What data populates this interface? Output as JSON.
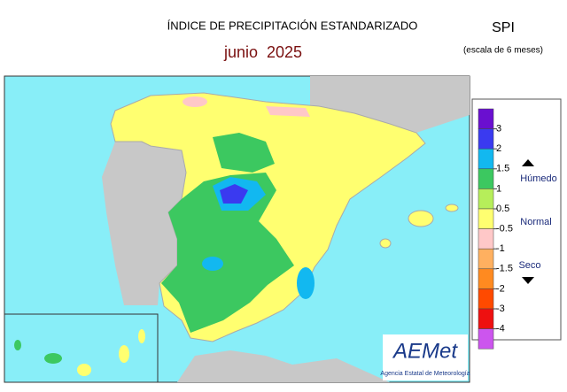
{
  "header": {
    "title": "ÍNDICE DE PRECIPITACIÓN ESTANDARIZADO",
    "date": "junio  2025",
    "index": "SPI",
    "scale": "(escala de 6 meses)"
  },
  "legend": {
    "ticks": [
      3,
      2,
      1.5,
      1,
      0.5,
      -0.5,
      -1,
      -1.5,
      -2,
      -3,
      -4
    ],
    "colors": [
      "#6a0fd0",
      "#3a3af0",
      "#12b8f0",
      "#3cc860",
      "#b6ee5a",
      "#ffff70",
      "#ffc8c8",
      "#ffb060",
      "#ff8a20",
      "#ff4a00",
      "#ee1010",
      "#cc55ee"
    ],
    "wet": "Húmedo",
    "normal": "Normal",
    "dry": "Seco"
  },
  "logo": {
    "name": "AEMet",
    "subtitle": "Agencia Estatal de Meteorología"
  }
}
